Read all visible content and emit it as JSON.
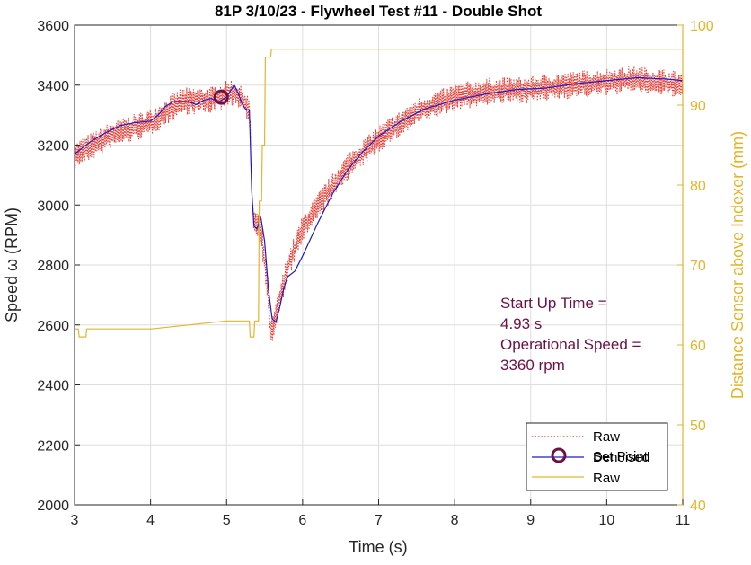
{
  "chart_data": {
    "type": "line",
    "title": "81P 3/10/23 - Flywheel Test #11 - Double Shot",
    "xlabel": "Time (s)",
    "ylabel_left": "Speed ω (RPM)",
    "ylabel_right": "Distance Sensor above Indexer (mm)",
    "xlim": [
      3,
      11
    ],
    "ylim_left": [
      2000,
      3600
    ],
    "ylim_right": [
      40,
      100
    ],
    "xticks": [
      3,
      4,
      5,
      6,
      7,
      8,
      9,
      10,
      11
    ],
    "yticks_left": [
      2000,
      2200,
      2400,
      2600,
      2800,
      3000,
      3200,
      3400,
      3600
    ],
    "yticks_right": [
      40,
      50,
      60,
      70,
      80,
      90,
      100
    ],
    "grid": true,
    "legend_position": "bottom-right",
    "annotation": [
      "Start Up Time =",
      "4.93 s",
      "Operational Speed =",
      "3360 rpm"
    ],
    "series": [
      {
        "name": "Raw",
        "axis": "left",
        "style": "dotted",
        "color": "#e8382f",
        "noise_amplitude_rpm": 45,
        "x": [
          3.0,
          3.5,
          4.0,
          4.4,
          4.8,
          5.1,
          5.3,
          5.35,
          5.45,
          5.55,
          5.58,
          5.65,
          5.8,
          6.0,
          6.3,
          6.6,
          7.0,
          7.5,
          8.0,
          8.5,
          9.0,
          9.5,
          10.0,
          10.4,
          11.0
        ],
        "y": [
          3165,
          3235,
          3275,
          3345,
          3350,
          3380,
          3320,
          2950,
          2920,
          2700,
          2560,
          2630,
          2790,
          2920,
          3030,
          3130,
          3220,
          3310,
          3360,
          3380,
          3385,
          3400,
          3410,
          3420,
          3400
        ]
      },
      {
        "name": "Denoised",
        "axis": "left",
        "style": "solid",
        "color": "#1a1acc",
        "x": [
          3.0,
          3.2,
          3.4,
          3.6,
          3.8,
          4.0,
          4.1,
          4.2,
          4.3,
          4.4,
          4.5,
          4.6,
          4.7,
          4.8,
          4.9,
          5.0,
          5.1,
          5.15,
          5.2,
          5.25,
          5.3,
          5.33,
          5.36,
          5.4,
          5.45,
          5.5,
          5.55,
          5.6,
          5.65,
          5.7,
          5.75,
          5.8,
          5.9,
          6.0,
          6.2,
          6.4,
          6.6,
          6.8,
          7.0,
          7.3,
          7.6,
          8.0,
          8.4,
          8.8,
          9.2,
          9.6,
          10.0,
          10.4,
          10.8,
          11.0
        ],
        "y": [
          3170,
          3210,
          3240,
          3265,
          3275,
          3280,
          3300,
          3330,
          3345,
          3345,
          3345,
          3335,
          3350,
          3355,
          3345,
          3360,
          3400,
          3375,
          3340,
          3320,
          3315,
          3050,
          2930,
          2920,
          2960,
          2880,
          2720,
          2620,
          2610,
          2660,
          2720,
          2760,
          2780,
          2830,
          2940,
          3040,
          3120,
          3180,
          3230,
          3280,
          3320,
          3350,
          3370,
          3385,
          3390,
          3405,
          3415,
          3425,
          3420,
          3415
        ]
      },
      {
        "name": "Set Point",
        "axis": "left",
        "style": "marker",
        "color": "#6e1046",
        "x": [
          4.93
        ],
        "y": [
          3360
        ]
      },
      {
        "name": "Raw",
        "axis": "right",
        "style": "solid",
        "color": "#e6b429",
        "x": [
          3.0,
          3.05,
          3.06,
          3.15,
          3.16,
          4.0,
          4.01,
          5.0,
          5.01,
          5.3,
          5.31,
          5.36,
          5.37,
          5.42,
          5.43,
          5.46,
          5.47,
          5.5,
          5.51,
          5.58,
          5.59,
          6.0,
          6.01,
          7.0,
          7.01,
          8.0,
          8.01,
          9.0,
          9.01,
          10.0,
          10.01,
          11.0
        ],
        "y": [
          62,
          62,
          61,
          61,
          62,
          62,
          62,
          63,
          63,
          63,
          61,
          61,
          63,
          63,
          78,
          78,
          85,
          85,
          96,
          96,
          97,
          97,
          97,
          97,
          97,
          97,
          97,
          97,
          97,
          97,
          97,
          97
        ]
      }
    ],
    "legend": [
      {
        "label": "Raw",
        "style": "dotted",
        "color": "#e8382f"
      },
      {
        "label": "Denoised",
        "style": "solid",
        "color": "#1a1acc"
      },
      {
        "label": "Set Point",
        "style": "marker",
        "color": "#6e1046"
      },
      {
        "label": "Raw",
        "style": "solid",
        "color": "#e6b429"
      }
    ],
    "colors": {
      "axis_left": "#262626",
      "axis_right": "#e6b429",
      "annotation": "#6e1046",
      "grid": "#dedede"
    }
  }
}
